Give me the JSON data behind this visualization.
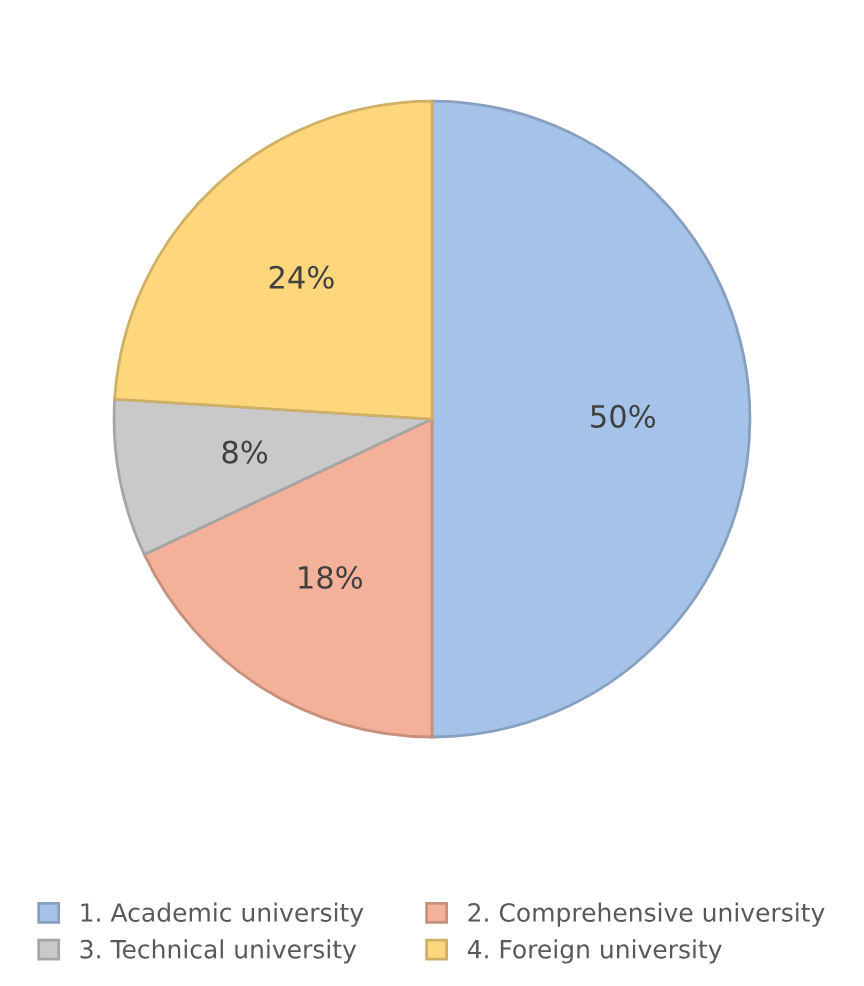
{
  "chart_data": {
    "type": "pie",
    "categories": [
      "1. Academic university",
      "2. Comprehensive university",
      "3. Technical university",
      "4. Foreign university"
    ],
    "values": [
      50,
      18,
      8,
      24
    ],
    "value_labels": [
      "50%",
      "18%",
      "8%",
      "24%"
    ],
    "colors": [
      "#a5c3e9",
      "#f4b199",
      "#c9c9c9",
      "#fed77d"
    ],
    "legend": "bottom"
  }
}
